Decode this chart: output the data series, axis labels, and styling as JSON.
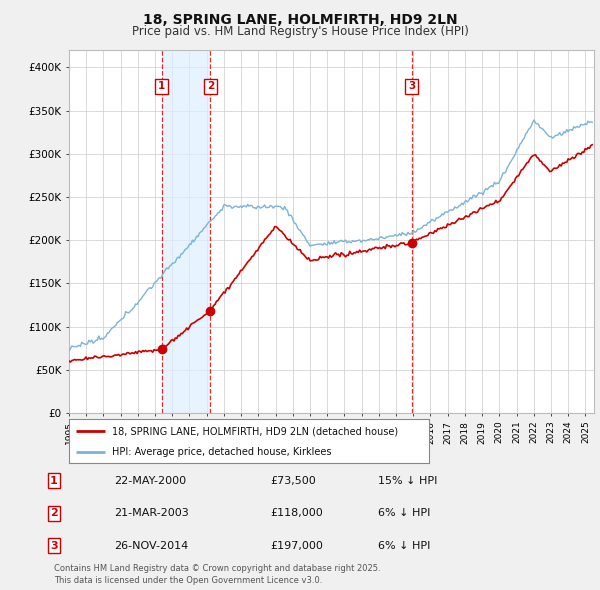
{
  "title": "18, SPRING LANE, HOLMFIRTH, HD9 2LN",
  "subtitle": "Price paid vs. HM Land Registry's House Price Index (HPI)",
  "ylim": [
    0,
    420000
  ],
  "yticks": [
    0,
    50000,
    100000,
    150000,
    200000,
    250000,
    300000,
    350000,
    400000
  ],
  "ytick_labels": [
    "£0",
    "£50K",
    "£100K",
    "£150K",
    "£200K",
    "£250K",
    "£300K",
    "£350K",
    "£400K"
  ],
  "xlim_start": 1995,
  "xlim_end": 2025.5,
  "sales": [
    {
      "num": 1,
      "date": "22-MAY-2000",
      "price": 73500,
      "year": 2000.38,
      "hpi_pct": "15% ↓ HPI"
    },
    {
      "num": 2,
      "date": "21-MAR-2003",
      "price": 118000,
      "year": 2003.22,
      "hpi_pct": "6% ↓ HPI"
    },
    {
      "num": 3,
      "date": "26-NOV-2014",
      "price": 197000,
      "year": 2014.9,
      "hpi_pct": "6% ↓ HPI"
    }
  ],
  "legend_label_red": "18, SPRING LANE, HOLMFIRTH, HD9 2LN (detached house)",
  "legend_label_blue": "HPI: Average price, detached house, Kirklees",
  "footer": "Contains HM Land Registry data © Crown copyright and database right 2025.\nThis data is licensed under the Open Government Licence v3.0.",
  "red_color": "#cc0000",
  "blue_color": "#7ab4d8",
  "shade_color": "#ddeeff",
  "bg_color": "#f0f0f0",
  "plot_bg_color": "#ffffff",
  "grid_color": "#cccccc",
  "vline_color": "#cc0000"
}
